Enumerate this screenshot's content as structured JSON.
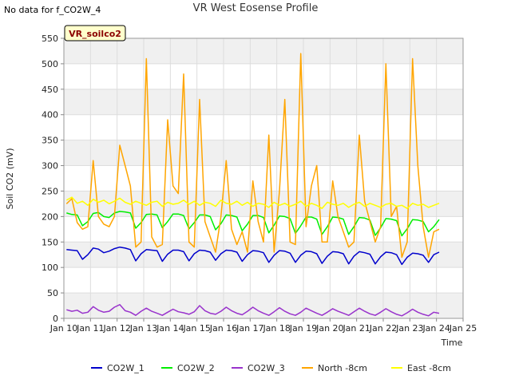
{
  "header": {
    "no_data_note": "No data for f_CO2W_4",
    "title": "VR West Eosense Profile",
    "site_tag": "VR_soilco2"
  },
  "chart_data": {
    "type": "line",
    "title": "VR West Eosense Profile",
    "xlabel": "Time",
    "ylabel": "Soil CO2 (mV)",
    "xlim": [
      10,
      25
    ],
    "ylim": [
      0,
      550
    ],
    "x_tick_labels": [
      "Jan 10",
      "Jan 11",
      "Jan 12",
      "Jan 13",
      "Jan 14",
      "Jan 15",
      "Jan 16",
      "Jan 17",
      "Jan 18",
      "Jan 19",
      "Jan 20",
      "Jan 21",
      "Jan 22",
      "Jan 23",
      "Jan 24",
      "Jan 25"
    ],
    "x_ticks": [
      10,
      11,
      12,
      13,
      14,
      15,
      16,
      17,
      18,
      19,
      20,
      21,
      22,
      23,
      24,
      25
    ],
    "y_ticks": [
      0,
      50,
      100,
      150,
      200,
      250,
      300,
      350,
      400,
      450,
      500,
      550
    ],
    "grid": true,
    "legend_position": "bottom",
    "x": [
      10.1,
      10.3,
      10.5,
      10.7,
      10.9,
      11.1,
      11.3,
      11.5,
      11.7,
      11.9,
      12.1,
      12.3,
      12.5,
      12.7,
      12.9,
      13.1,
      13.3,
      13.5,
      13.7,
      13.9,
      14.1,
      14.3,
      14.5,
      14.7,
      14.9,
      15.1,
      15.3,
      15.5,
      15.7,
      15.9,
      16.1,
      16.3,
      16.5,
      16.7,
      16.9,
      17.1,
      17.3,
      17.5,
      17.7,
      17.9,
      18.1,
      18.3,
      18.5,
      18.7,
      18.9,
      19.1,
      19.3,
      19.5,
      19.7,
      19.9,
      20.1,
      20.3,
      20.5,
      20.7,
      20.9,
      21.1,
      21.3,
      21.5,
      21.7,
      21.9,
      22.1,
      22.3,
      22.5,
      22.7,
      22.9,
      23.1,
      23.3,
      23.5,
      23.7,
      23.9,
      24.1
    ],
    "series": [
      {
        "name": "CO2W_1",
        "color": "#0000cc",
        "values": [
          135,
          134,
          133,
          116,
          125,
          138,
          136,
          129,
          132,
          137,
          140,
          138,
          135,
          113,
          127,
          135,
          134,
          133,
          112,
          126,
          134,
          134,
          131,
          113,
          127,
          134,
          133,
          130,
          114,
          127,
          134,
          133,
          130,
          112,
          125,
          133,
          132,
          129,
          110,
          124,
          133,
          132,
          128,
          110,
          124,
          132,
          131,
          127,
          108,
          122,
          131,
          130,
          127,
          107,
          122,
          131,
          129,
          126,
          107,
          121,
          130,
          129,
          125,
          106,
          120,
          128,
          127,
          124,
          110,
          125,
          130
        ]
      },
      {
        "name": "CO2W_2",
        "color": "#00ee00",
        "values": [
          207,
          204,
          203,
          182,
          190,
          206,
          208,
          200,
          198,
          207,
          210,
          209,
          207,
          177,
          188,
          204,
          205,
          203,
          178,
          190,
          205,
          205,
          202,
          176,
          188,
          203,
          203,
          200,
          174,
          186,
          203,
          202,
          199,
          172,
          185,
          202,
          202,
          198,
          168,
          183,
          201,
          200,
          196,
          167,
          182,
          199,
          199,
          195,
          165,
          180,
          199,
          198,
          195,
          165,
          180,
          198,
          197,
          193,
          163,
          178,
          196,
          195,
          192,
          162,
          176,
          194,
          193,
          190,
          170,
          180,
          194
        ]
      },
      {
        "name": "CO2W_3",
        "color": "#9933cc",
        "values": [
          17,
          14,
          16,
          10,
          12,
          23,
          16,
          12,
          14,
          22,
          27,
          15,
          12,
          6,
          14,
          20,
          14,
          10,
          6,
          12,
          18,
          13,
          11,
          8,
          13,
          25,
          15,
          10,
          8,
          14,
          22,
          15,
          10,
          7,
          14,
          22,
          15,
          10,
          6,
          13,
          21,
          14,
          9,
          6,
          12,
          20,
          15,
          10,
          6,
          12,
          19,
          14,
          10,
          6,
          13,
          20,
          14,
          9,
          6,
          12,
          19,
          13,
          8,
          5,
          11,
          18,
          12,
          8,
          5,
          12,
          10
        ]
      },
      {
        "name": "North -8cm",
        "color": "#ffa500",
        "values": [
          225,
          235,
          188,
          175,
          180,
          310,
          200,
          185,
          180,
          200,
          340,
          300,
          260,
          140,
          150,
          510,
          160,
          140,
          145,
          390,
          260,
          245,
          480,
          150,
          140,
          430,
          190,
          160,
          130,
          200,
          310,
          175,
          145,
          170,
          130,
          270,
          190,
          150,
          360,
          130,
          250,
          430,
          150,
          145,
          520,
          180,
          260,
          300,
          150,
          150,
          270,
          200,
          170,
          140,
          150,
          360,
          230,
          190,
          150,
          180,
          500,
          200,
          220,
          120,
          150,
          510,
          300,
          180,
          120,
          170,
          175
        ]
      },
      {
        "name": "East -8cm",
        "color": "#ffff00",
        "values": [
          232,
          238,
          226,
          230,
          222,
          234,
          228,
          232,
          225,
          230,
          236,
          228,
          224,
          230,
          226,
          222,
          228,
          230,
          220,
          228,
          224,
          226,
          232,
          224,
          230,
          222,
          228,
          226,
          220,
          232,
          226,
          224,
          230,
          222,
          228,
          220,
          226,
          224,
          218,
          228,
          222,
          226,
          220,
          224,
          230,
          220,
          226,
          222,
          216,
          228,
          224,
          222,
          226,
          218,
          224,
          228,
          220,
          226,
          222,
          218,
          224,
          226,
          220,
          222,
          216,
          226,
          222,
          224,
          218,
          222,
          226
        ]
      }
    ]
  }
}
